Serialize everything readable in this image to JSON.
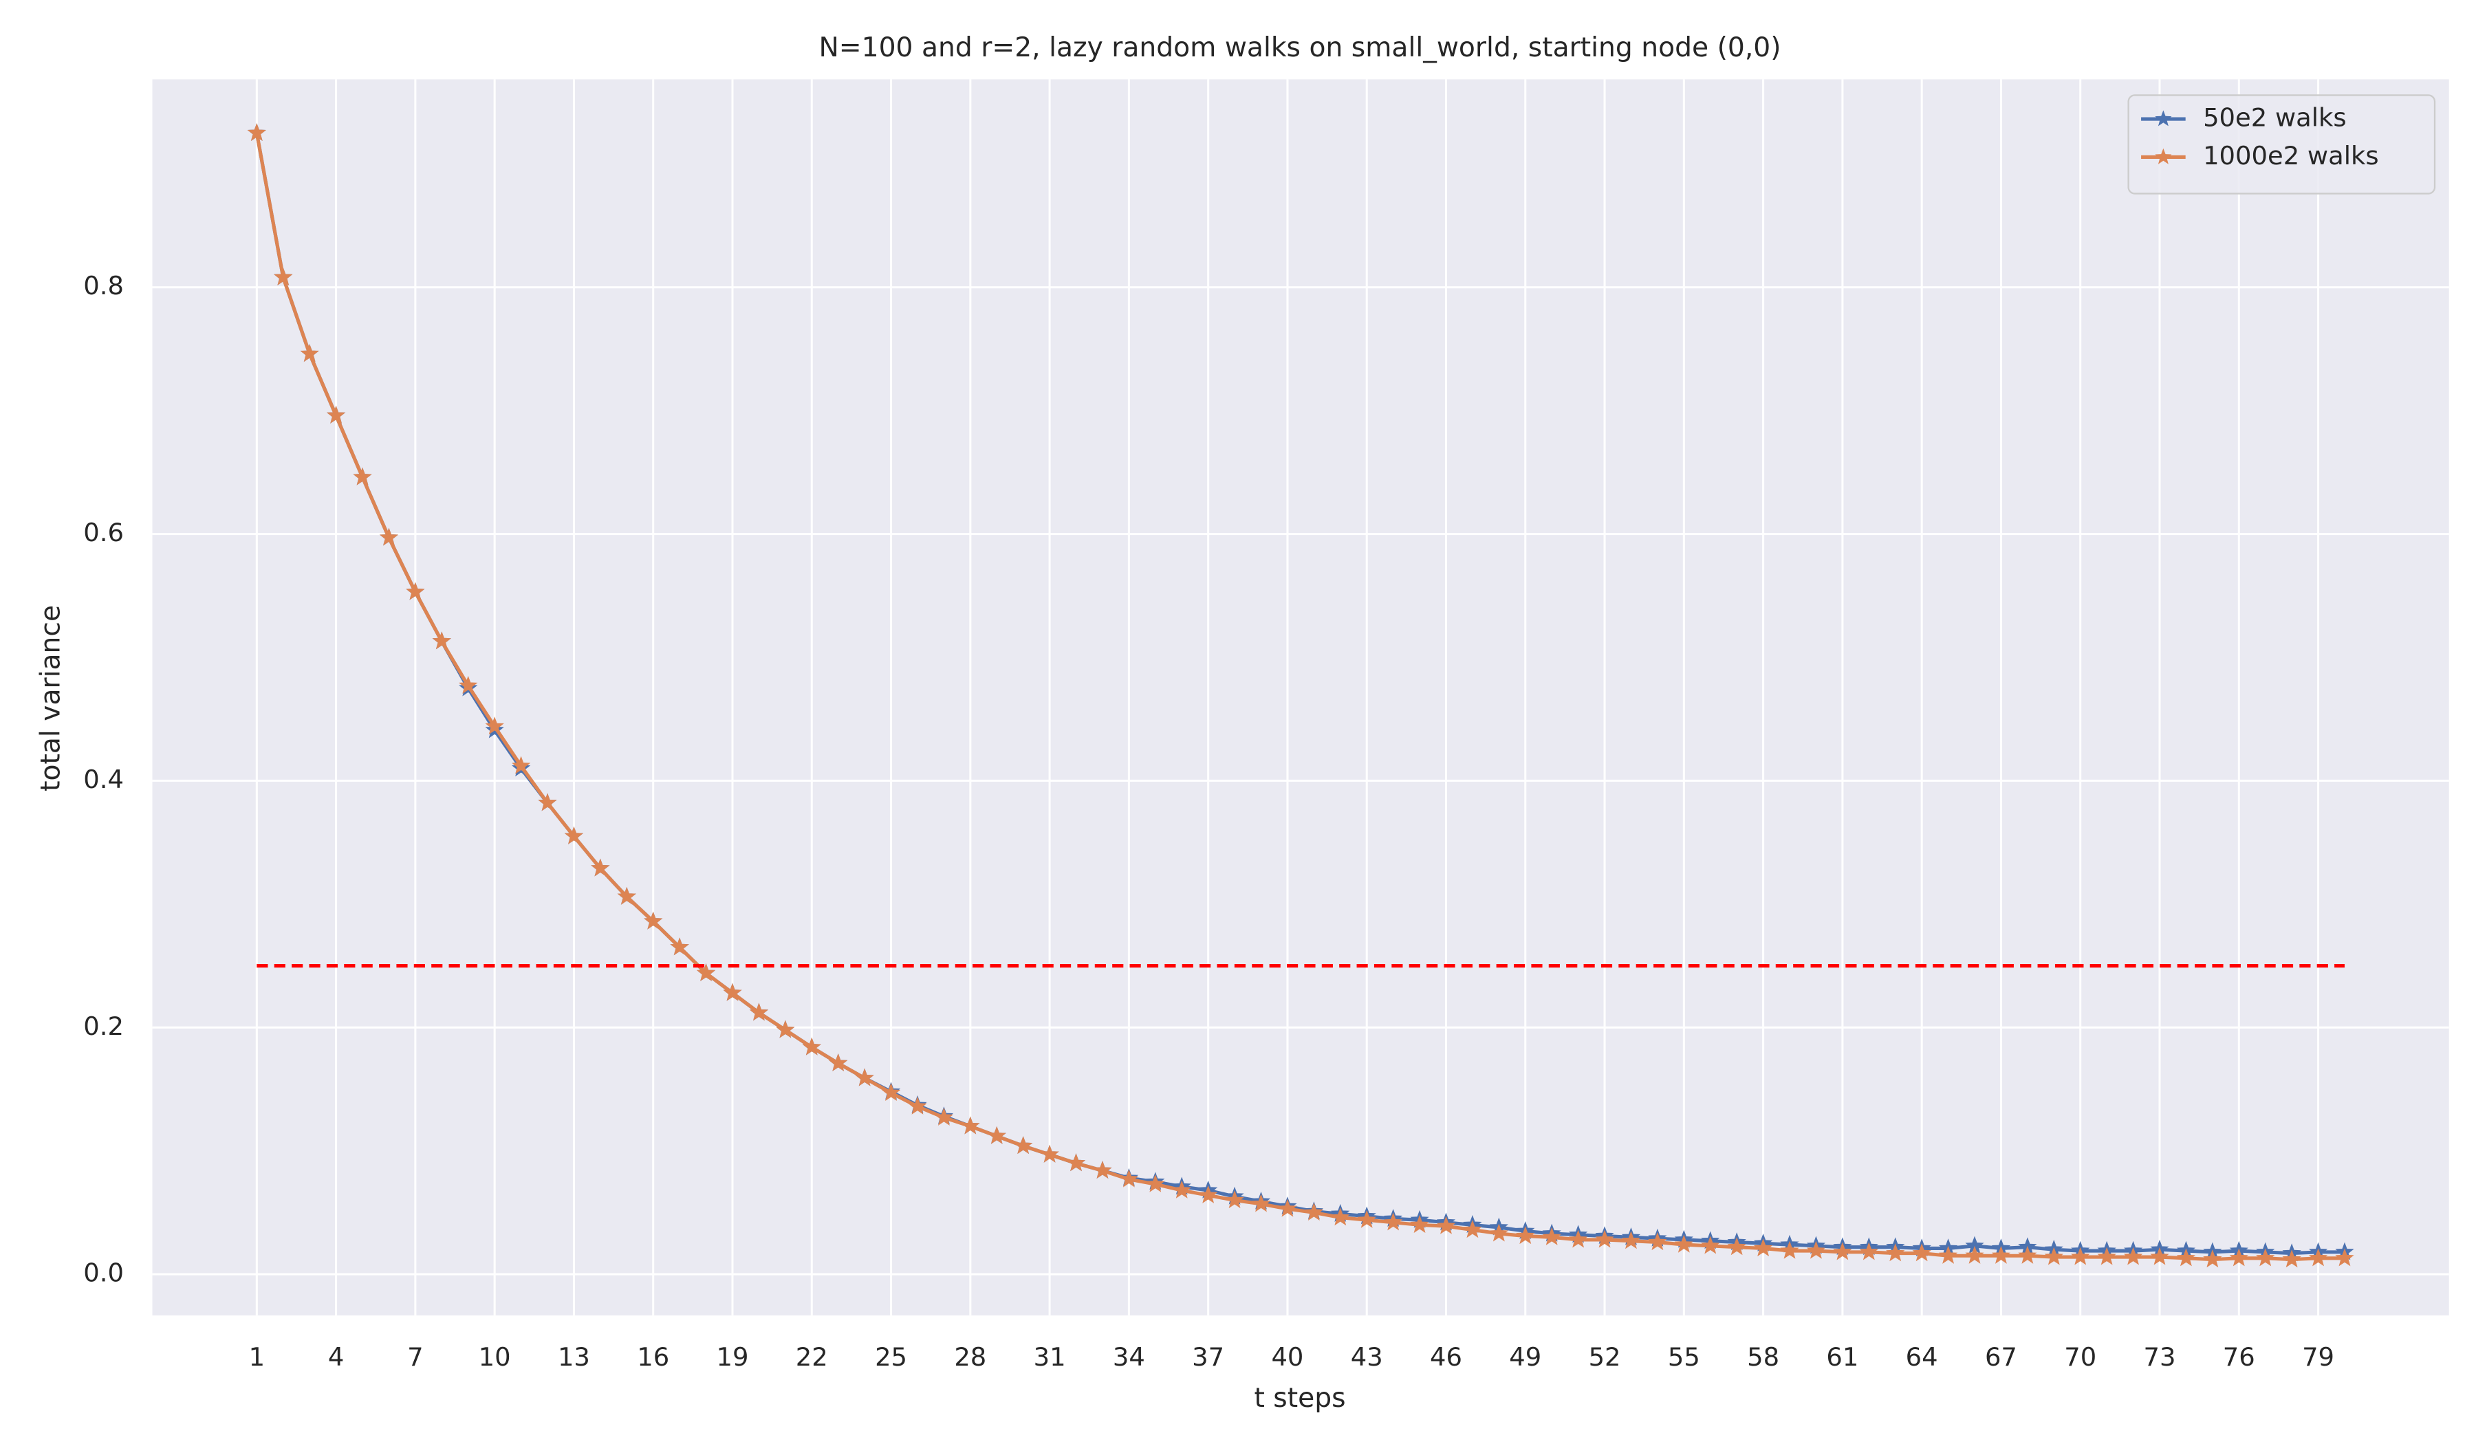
{
  "chart_data": {
    "type": "line",
    "title": "N=100 and r=2, lazy random walks on small_world, starting node (0,0)",
    "x_label": "t steps",
    "y_label": "total variance",
    "x": [
      1,
      2,
      3,
      4,
      5,
      6,
      7,
      8,
      9,
      10,
      11,
      12,
      13,
      14,
      15,
      16,
      17,
      18,
      19,
      20,
      21,
      22,
      23,
      24,
      25,
      26,
      27,
      28,
      29,
      30,
      31,
      32,
      33,
      34,
      35,
      36,
      37,
      38,
      39,
      40,
      41,
      42,
      43,
      44,
      45,
      46,
      47,
      48,
      49,
      50,
      51,
      52,
      53,
      54,
      55,
      56,
      57,
      58,
      59,
      60,
      61,
      62,
      63,
      64,
      65,
      66,
      67,
      68,
      69,
      70,
      71,
      72,
      73,
      74,
      75,
      76,
      77,
      78,
      79,
      80
    ],
    "series": [
      {
        "name": "50e2 walks",
        "color": "#4c72b0",
        "values": [
          0.925,
          0.808,
          0.746,
          0.696,
          0.646,
          0.597,
          0.553,
          0.513,
          0.475,
          0.441,
          0.41,
          0.382,
          0.355,
          0.329,
          0.306,
          0.286,
          0.265,
          0.244,
          0.228,
          0.212,
          0.198,
          0.184,
          0.171,
          0.159,
          0.148,
          0.137,
          0.128,
          0.12,
          0.112,
          0.104,
          0.097,
          0.09,
          0.084,
          0.078,
          0.075,
          0.071,
          0.068,
          0.063,
          0.059,
          0.055,
          0.051,
          0.049,
          0.047,
          0.045,
          0.044,
          0.042,
          0.04,
          0.038,
          0.035,
          0.033,
          0.032,
          0.031,
          0.03,
          0.029,
          0.028,
          0.027,
          0.026,
          0.025,
          0.024,
          0.023,
          0.022,
          0.022,
          0.022,
          0.021,
          0.021,
          0.023,
          0.021,
          0.022,
          0.02,
          0.019,
          0.019,
          0.019,
          0.02,
          0.019,
          0.018,
          0.019,
          0.018,
          0.017,
          0.018,
          0.018
        ]
      },
      {
        "name": "1000e2 walks",
        "color": "#dd8452",
        "values": [
          0.925,
          0.808,
          0.746,
          0.696,
          0.646,
          0.597,
          0.553,
          0.513,
          0.477,
          0.444,
          0.412,
          0.382,
          0.355,
          0.329,
          0.306,
          0.286,
          0.265,
          0.244,
          0.228,
          0.212,
          0.198,
          0.184,
          0.171,
          0.159,
          0.147,
          0.136,
          0.127,
          0.12,
          0.112,
          0.104,
          0.097,
          0.09,
          0.084,
          0.077,
          0.073,
          0.068,
          0.064,
          0.06,
          0.057,
          0.053,
          0.05,
          0.046,
          0.044,
          0.042,
          0.04,
          0.039,
          0.036,
          0.033,
          0.031,
          0.03,
          0.028,
          0.028,
          0.027,
          0.026,
          0.024,
          0.023,
          0.022,
          0.021,
          0.019,
          0.019,
          0.018,
          0.018,
          0.017,
          0.017,
          0.015,
          0.015,
          0.015,
          0.015,
          0.014,
          0.014,
          0.014,
          0.014,
          0.014,
          0.013,
          0.012,
          0.013,
          0.013,
          0.012,
          0.013,
          0.013
        ]
      }
    ],
    "hline": {
      "value": 0.25,
      "color": "#ff0000"
    },
    "xlim": [
      -2.95,
      83.95
    ],
    "ylim": [
      -0.0334,
      0.9685
    ],
    "xticks": [
      1,
      4,
      7,
      10,
      13,
      16,
      19,
      22,
      25,
      28,
      31,
      34,
      37,
      40,
      43,
      46,
      49,
      52,
      55,
      58,
      61,
      64,
      67,
      70,
      73,
      76,
      79
    ],
    "yticks": [
      {
        "value": 0,
        "label": "0.0"
      },
      0.2,
      0.4,
      0.6,
      0.8
    ],
    "grid": true,
    "legend": "upper right",
    "marker": "star"
  }
}
